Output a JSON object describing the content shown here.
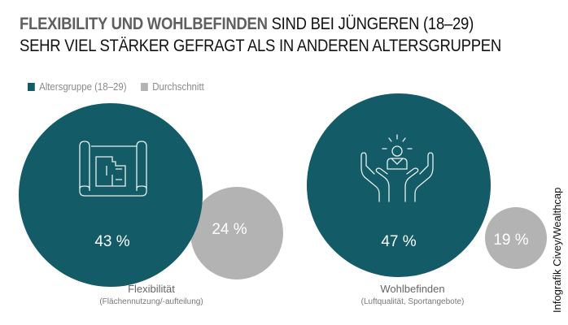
{
  "title": {
    "bold": "FLEXIBILITY UND WOHLBEFINDEN",
    "rest_line1": " SIND BEI JÜNGEREN (18–29)",
    "line2": "SEHR VIEL STÄRKER GEFRAGT ALS IN ANDEREN ALTERSGRUPPEN"
  },
  "credit": "Infografik Civey/Wealthcap",
  "colors": {
    "group": "#135b66",
    "average": "#b3b3b3"
  },
  "chart_data": {
    "type": "bubble",
    "legend": {
      "position": "top-left",
      "entries": [
        "Altersgruppe (18–29)",
        "Durchschnitt"
      ]
    },
    "categories": [
      {
        "label": "Flexibilität",
        "sublabel": "(Flächennutzung/-aufteilung)",
        "icon": "floorplan-icon",
        "group_value": 43,
        "group_label": "43 %",
        "average_value": 24,
        "average_label": "24 %"
      },
      {
        "label": "Wohlbefinden",
        "sublabel": "(Luftqualität, Sportangebote)",
        "icon": "hands-person-icon",
        "group_value": 47,
        "group_label": "47 %",
        "average_value": 19,
        "average_label": "19 %"
      }
    ]
  }
}
